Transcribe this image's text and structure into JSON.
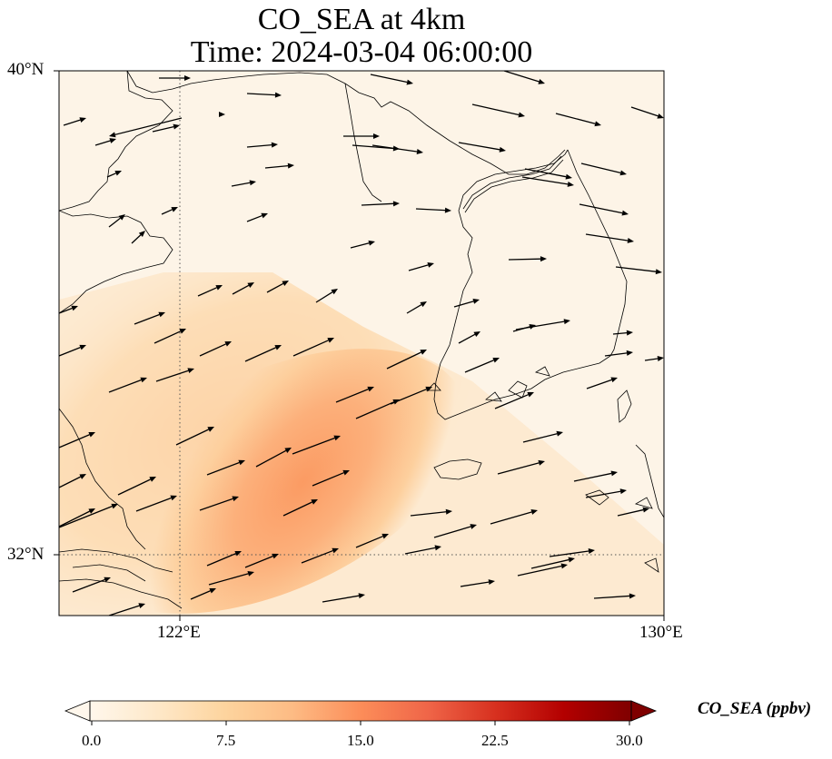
{
  "title": {
    "line1": "CO_SEA at 4km",
    "line2": "Time: 2024-03-04 06:00:00"
  },
  "map": {
    "lon_range": [
      120,
      130
    ],
    "lat_range": [
      31,
      40
    ],
    "lat_ticks": [
      {
        "value": 40,
        "label": "40°N"
      },
      {
        "value": 32,
        "label": "32°N"
      }
    ],
    "lon_ticks": [
      {
        "value": 122,
        "label": "122°E"
      },
      {
        "value": 130,
        "label": "130°E"
      }
    ],
    "gridline_style": "dotted",
    "field_description_units": "ppbv"
  },
  "colorbar": {
    "label": "CO_SEA (ppbv)",
    "colormap": "OrRd",
    "min": 0.0,
    "max": 30.0,
    "extend": "both",
    "ticks": [
      "0.0",
      "7.5",
      "15.0",
      "22.5",
      "30.0"
    ],
    "colors": [
      "#fff7ec",
      "#fee8c8",
      "#fdd49e",
      "#fdbb84",
      "#fc8d59",
      "#ef6548",
      "#d7301f",
      "#b30000",
      "#7f0000"
    ]
  },
  "colors": {
    "coast": "#000000",
    "vector": "#000000",
    "background_low": "#fdf3e5"
  }
}
